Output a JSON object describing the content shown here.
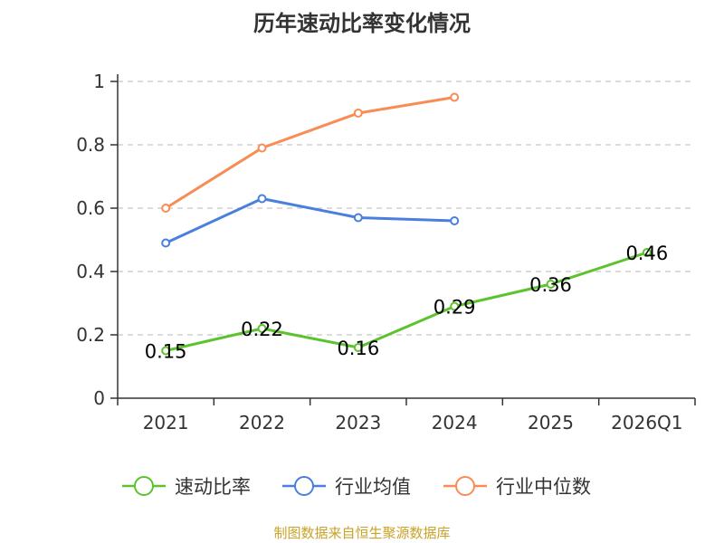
{
  "chart_data": {
    "type": "line",
    "title": "历年速动比率变化情况",
    "categories": [
      "2021",
      "2022",
      "2023",
      "2024",
      "2025",
      "2026Q1"
    ],
    "ylim": [
      0,
      1
    ],
    "yticks": [
      "0",
      "0.2",
      "0.4",
      "0.6",
      "0.8",
      "1"
    ],
    "grid": true,
    "legend_position": "bottom",
    "series": [
      {
        "name": "速动比率",
        "color": "#5cc32e",
        "values": [
          0.15,
          0.22,
          0.16,
          0.29,
          0.36,
          0.46
        ],
        "labels": [
          "0.15",
          "0.22",
          "0.16",
          "0.29",
          "0.36",
          "0.46"
        ]
      },
      {
        "name": "行业均值",
        "color": "#4a7fdd",
        "values": [
          0.49,
          0.63,
          0.57,
          0.56,
          null,
          null
        ]
      },
      {
        "name": "行业中位数",
        "color": "#f98c55",
        "values": [
          0.6,
          0.79,
          0.9,
          0.95,
          null,
          null
        ]
      }
    ]
  },
  "source": "制图数据来自恒生聚源数据库",
  "source_color": "#c9a227"
}
